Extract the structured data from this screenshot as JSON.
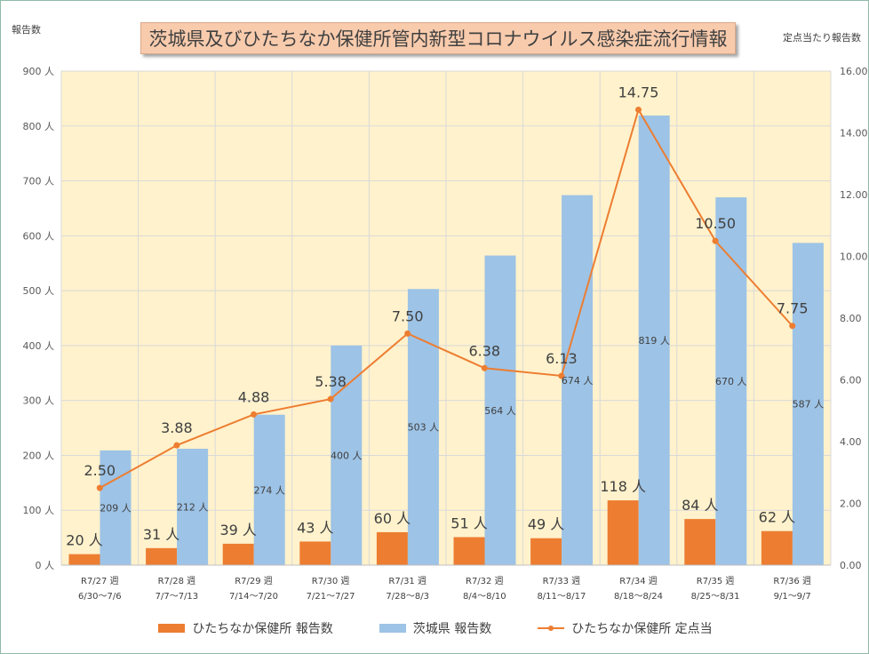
{
  "title": "茨城県及びひたちなか保健所管内新型コロナウイルス感染症流行情報",
  "left_axis_title": "報告数",
  "right_axis_title": "定点当たり報告数",
  "colors": {
    "hitachinaka_bar": "#ed7d31",
    "ibaraki_bar": "#9dc3e6",
    "line": "#ed7d31",
    "plot_background": "#fff2cc",
    "title_background": "#f8cbad"
  },
  "legend": [
    {
      "label": "ひたちなか保健所 報告数",
      "kind": "bar",
      "color": "#ed7d31"
    },
    {
      "label": "茨城県 報告数",
      "kind": "bar",
      "color": "#9dc3e6"
    },
    {
      "label": "ひたちなか保健所 定点当",
      "kind": "line",
      "color": "#ed7d31"
    }
  ],
  "chart_data": {
    "type": "bar",
    "categories": [
      [
        "R7/27 週",
        "6/30～7/6"
      ],
      [
        "R7/28 週",
        "7/7～7/13"
      ],
      [
        "R7/29 週",
        "7/14～7/20"
      ],
      [
        "R7/30 週",
        "7/21～7/27"
      ],
      [
        "R7/31 週",
        "7/28～8/3"
      ],
      [
        "R7/32 週",
        "8/4～8/10"
      ],
      [
        "R7/33 週",
        "8/11～8/17"
      ],
      [
        "R7/34 週",
        "8/18～8/24"
      ],
      [
        "R7/35 週",
        "8/25～8/31"
      ],
      [
        "R7/36 週",
        "9/1～9/7"
      ]
    ],
    "series": [
      {
        "name": "ひたちなか保健所 報告数",
        "kind": "bar",
        "axis": "left",
        "values": [
          20,
          31,
          39,
          43,
          60,
          51,
          49,
          118,
          84,
          62
        ],
        "labels": [
          "20 人",
          "31 人",
          "39 人",
          "43 人",
          "60 人",
          "51 人",
          "49 人",
          "118 人",
          "84 人",
          "62 人"
        ]
      },
      {
        "name": "茨城県 報告数",
        "kind": "bar",
        "axis": "left",
        "values": [
          209,
          212,
          274,
          400,
          503,
          564,
          674,
          819,
          670,
          587
        ],
        "labels": [
          "209 人",
          "212 人",
          "274 人",
          "400 人",
          "503 人",
          "564 人",
          "674 人",
          "819 人",
          "670 人",
          "587 人"
        ]
      },
      {
        "name": "ひたちなか保健所 定点当",
        "kind": "line",
        "axis": "right",
        "values": [
          2.5,
          3.88,
          4.88,
          5.38,
          7.5,
          6.38,
          6.13,
          14.75,
          10.5,
          7.75
        ],
        "labels": [
          "2.50",
          "3.88",
          "4.88",
          "5.38",
          "7.50",
          "6.38",
          "6.13",
          "14.75",
          "10.50",
          "7.75"
        ]
      }
    ],
    "y_left": {
      "min": 0,
      "max": 900,
      "step": 100,
      "tick_labels": [
        "0 人",
        "100 人",
        "200 人",
        "300 人",
        "400 人",
        "500 人",
        "600 人",
        "700 人",
        "800 人",
        "900 人"
      ]
    },
    "y_right": {
      "min": 0,
      "max": 16,
      "step": 2,
      "tick_labels": [
        "0.00",
        "2.00",
        "4.00",
        "6.00",
        "8.00",
        "10.00",
        "12.00",
        "14.00",
        "16.00"
      ]
    },
    "grid": true,
    "legend_position": "bottom"
  }
}
